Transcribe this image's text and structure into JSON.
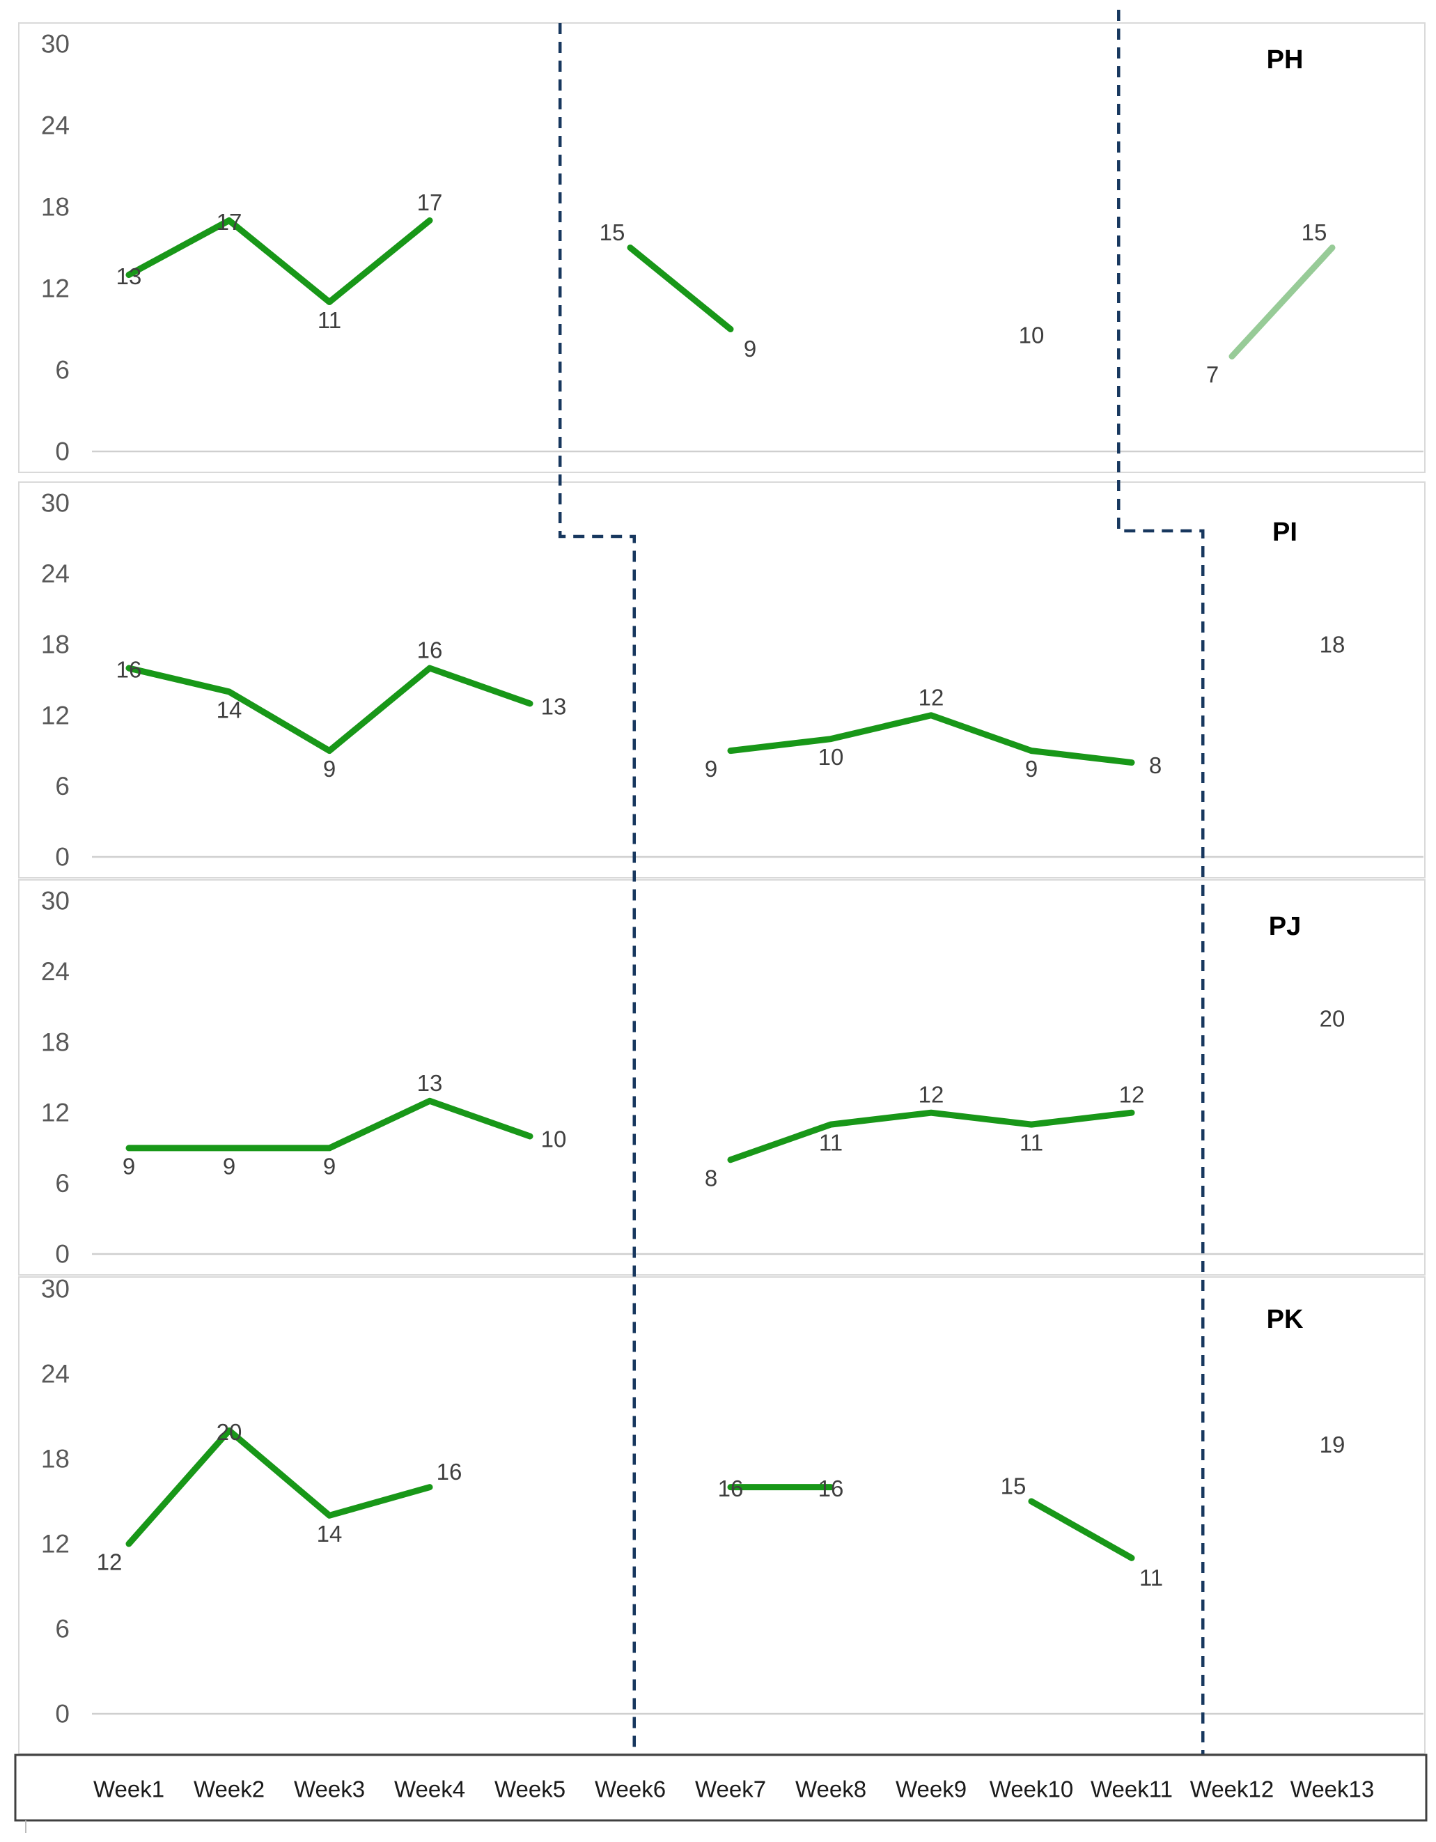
{
  "colors": {
    "series_green": "#189718",
    "series_light_green": "#97cb97",
    "phase_line_navy": "#17375e",
    "panel_border_gray": "#d9d9d9",
    "zero_gridline_gray": "#cfcfcf",
    "axis_box_border": "#404040",
    "y_tick_text": "#595959",
    "data_label_text": "#3f3f3f",
    "week_label_text": "#1a1a1a",
    "title_text": "#000000"
  },
  "y_axis": {
    "min": 0,
    "max": 30,
    "ticks": [
      30,
      24,
      18,
      12,
      6,
      0
    ]
  },
  "x_axis": {
    "labels": [
      "Week1",
      "Week2",
      "Week3",
      "Week4",
      "Week5",
      "Week6",
      "Week7",
      "Week8",
      "Week9",
      "Week10",
      "Week11",
      "Week12",
      "Week13"
    ]
  },
  "chart_data": [
    {
      "type": "line",
      "panel": "PH",
      "ylim": [
        0,
        30
      ],
      "segments": [
        {
          "phase": "baseline",
          "color_key": "series_green",
          "points": [
            {
              "week": 1,
              "value": 13,
              "label_pos": "center"
            },
            {
              "week": 2,
              "value": 17,
              "label_pos": "center"
            },
            {
              "week": 3,
              "value": 11,
              "label_pos": "below"
            },
            {
              "week": 4,
              "value": 17,
              "label_pos": "above"
            }
          ]
        },
        {
          "phase": "intervention",
          "color_key": "series_green",
          "points": [
            {
              "week": 6,
              "value": 15,
              "label_pos": "above-left"
            },
            {
              "week": 7,
              "value": 9,
              "label_pos": "below-right"
            }
          ]
        },
        {
          "phase": "follow-up",
          "color_key": "series_light_green",
          "points": [
            {
              "week": 12,
              "value": 7,
              "label_pos": "below-left"
            },
            {
              "week": 13,
              "value": 15,
              "label_pos": "above-left"
            }
          ]
        }
      ],
      "point_labels_only": [
        {
          "week": 10,
          "value": 10,
          "label_pos": "center"
        }
      ]
    },
    {
      "type": "line",
      "panel": "PI",
      "ylim": [
        0,
        30
      ],
      "segments": [
        {
          "phase": "baseline",
          "color_key": "series_green",
          "points": [
            {
              "week": 1,
              "value": 16,
              "label_pos": "center"
            },
            {
              "week": 2,
              "value": 14,
              "label_pos": "below"
            },
            {
              "week": 3,
              "value": 9,
              "label_pos": "below"
            },
            {
              "week": 4,
              "value": 16,
              "label_pos": "above"
            },
            {
              "week": 5,
              "value": 13,
              "label_pos": "right"
            }
          ]
        },
        {
          "phase": "intervention",
          "color_key": "series_green",
          "points": [
            {
              "week": 7,
              "value": 9,
              "label_pos": "below-left"
            },
            {
              "week": 8,
              "value": 10,
              "label_pos": "below"
            },
            {
              "week": 9,
              "value": 12,
              "label_pos": "above"
            },
            {
              "week": 10,
              "value": 9,
              "label_pos": "below"
            },
            {
              "week": 11,
              "value": 8,
              "label_pos": "right"
            }
          ]
        }
      ],
      "point_labels_only": [
        {
          "week": 13,
          "value": 18,
          "label_pos": "center"
        }
      ]
    },
    {
      "type": "line",
      "panel": "PJ",
      "ylim": [
        0,
        30
      ],
      "segments": [
        {
          "phase": "baseline",
          "color_key": "series_green",
          "points": [
            {
              "week": 1,
              "value": 9,
              "label_pos": "below"
            },
            {
              "week": 2,
              "value": 9,
              "label_pos": "below"
            },
            {
              "week": 3,
              "value": 9,
              "label_pos": "below"
            },
            {
              "week": 4,
              "value": 13,
              "label_pos": "above"
            },
            {
              "week": 5,
              "value": 10,
              "label_pos": "right"
            }
          ]
        },
        {
          "phase": "intervention",
          "color_key": "series_green",
          "points": [
            {
              "week": 7,
              "value": 8,
              "label_pos": "below-left"
            },
            {
              "week": 8,
              "value": 11,
              "label_pos": "below"
            },
            {
              "week": 9,
              "value": 12,
              "label_pos": "above"
            },
            {
              "week": 10,
              "value": 11,
              "label_pos": "below"
            },
            {
              "week": 11,
              "value": 12,
              "label_pos": "above"
            }
          ]
        }
      ],
      "point_labels_only": [
        {
          "week": 13,
          "value": 20,
          "label_pos": "center"
        }
      ]
    },
    {
      "type": "line",
      "panel": "PK",
      "ylim": [
        0,
        30
      ],
      "segments": [
        {
          "phase": "baseline",
          "color_key": "series_green",
          "points": [
            {
              "week": 1,
              "value": 12,
              "label_pos": "below-left"
            },
            {
              "week": 2,
              "value": 20,
              "label_pos": "center"
            },
            {
              "week": 3,
              "value": 14,
              "label_pos": "below"
            },
            {
              "week": 4,
              "value": 16,
              "label_pos": "above-right"
            }
          ]
        },
        {
          "phase": "intervention",
          "color_key": "series_green",
          "points": [
            {
              "week": 7,
              "value": 16,
              "label_pos": "center"
            },
            {
              "week": 8,
              "value": 16,
              "label_pos": "center"
            }
          ]
        },
        {
          "phase": "intervention-2",
          "color_key": "series_green",
          "points": [
            {
              "week": 10,
              "value": 15,
              "label_pos": "above-left"
            },
            {
              "week": 11,
              "value": 11,
              "label_pos": "below-right"
            }
          ]
        }
      ],
      "point_labels_only": [
        {
          "week": 13,
          "value": 19,
          "label_pos": "center"
        }
      ]
    }
  ],
  "phase_lines": [
    {
      "name": "baseline-intervention-boundary",
      "top_week": 5.3,
      "lower_week": 6.04
    },
    {
      "name": "intervention-followup-boundary",
      "top_week": 10.87,
      "lower_week": 11.71
    }
  ]
}
